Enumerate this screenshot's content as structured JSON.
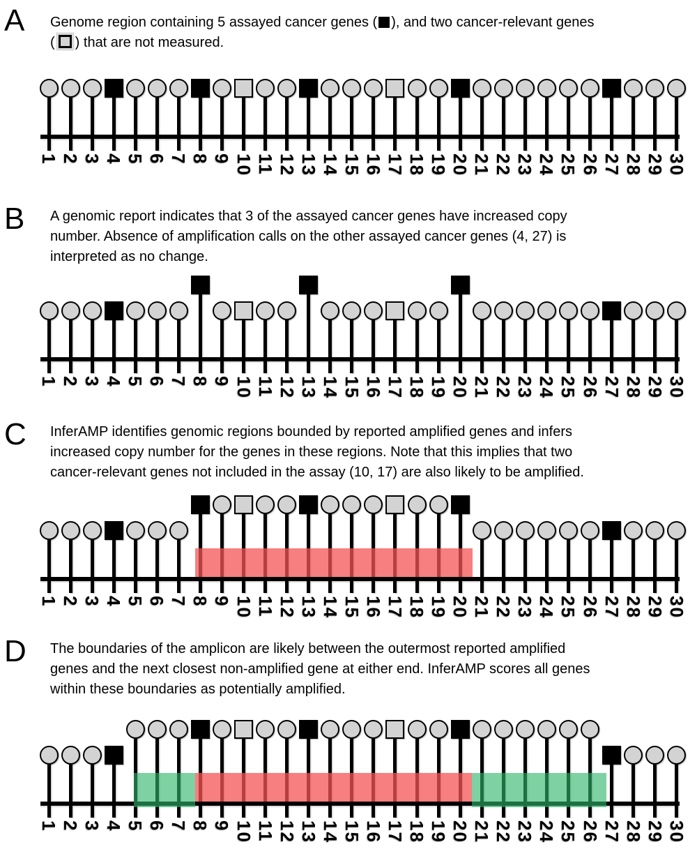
{
  "colors": {
    "marker_fill": "#d3d3d3",
    "marker_stroke": "#000000",
    "assayed_fill": "#000000",
    "caption_highlight": "#d9d9d9",
    "region_red": "rgba(244,84,84,0.75)",
    "region_green": "rgba(47,181,105,0.62)"
  },
  "genome": {
    "gene_count": 30,
    "gene_labels": [
      "1",
      "2",
      "3",
      "4",
      "5",
      "6",
      "7",
      "8",
      "9",
      "10",
      "11",
      "12",
      "13",
      "14",
      "15",
      "16",
      "17",
      "18",
      "19",
      "20",
      "21",
      "22",
      "23",
      "24",
      "25",
      "26",
      "27",
      "28",
      "29",
      "30"
    ],
    "assayed_genes": [
      4,
      8,
      13,
      20,
      27
    ],
    "unmeasured_cancer_relevant_genes": [
      10,
      17
    ],
    "reported_amplified_genes": [
      8,
      13,
      20
    ]
  },
  "panels": [
    {
      "letter": "A",
      "caption_lines": [
        [
          {
            "t": "Genome region containing 5 assayed cancer genes ("
          },
          {
            "g": "black-square"
          },
          {
            "t": "), and two cancer-relevant genes"
          }
        ],
        [
          {
            "t": "("
          },
          {
            "g": "gray-square"
          },
          {
            "t": ") that are not measured."
          }
        ]
      ],
      "raised_genes": [],
      "regions": []
    },
    {
      "letter": "B",
      "caption_lines": [
        [
          {
            "t": "A genomic report indicates that 3 of the assayed cancer genes have increased copy"
          }
        ],
        [
          {
            "t": "number. Absence of amplification calls on the other assayed cancer genes (4, 27) is"
          }
        ],
        [
          {
            "t": "interpreted as no change."
          }
        ]
      ],
      "raised_genes": [
        8,
        13,
        20
      ],
      "regions": []
    },
    {
      "letter": "C",
      "caption_lines": [
        [
          {
            "t": "InferAMP identifies genomic regions bounded by reported amplified genes and infers"
          }
        ],
        [
          {
            "t": "increased copy number for the genes in these regions. Note that this implies that two"
          }
        ],
        [
          {
            "t": "cancer-relevant genes not included in the assay (10, 17) are also likely to be amplified."
          }
        ]
      ],
      "raised_genes": [
        8,
        9,
        10,
        11,
        12,
        13,
        14,
        15,
        16,
        17,
        18,
        19,
        20
      ],
      "regions": [
        {
          "color": "red",
          "from_gene": 7.77,
          "to_gene": 20.58
        }
      ]
    },
    {
      "letter": "D",
      "caption_lines": [
        [
          {
            "t": "The boundaries of the amplicon are likely between the outermost reported amplified"
          }
        ],
        [
          {
            "t": "genes and the next closest non-amplified gene at either end. InferAMP scores all genes"
          }
        ],
        [
          {
            "t": "within these boundaries as potentially amplified."
          }
        ]
      ],
      "raised_genes": [
        5,
        6,
        7,
        8,
        9,
        10,
        11,
        12,
        13,
        14,
        15,
        16,
        17,
        18,
        19,
        20,
        21,
        22,
        23,
        24,
        25,
        26
      ],
      "regions": [
        {
          "color": "green",
          "from_gene": 4.93,
          "to_gene": 7.77
        },
        {
          "color": "red",
          "from_gene": 7.77,
          "to_gene": 20.55
        },
        {
          "color": "green",
          "from_gene": 20.55,
          "to_gene": 26.75
        }
      ]
    }
  ]
}
